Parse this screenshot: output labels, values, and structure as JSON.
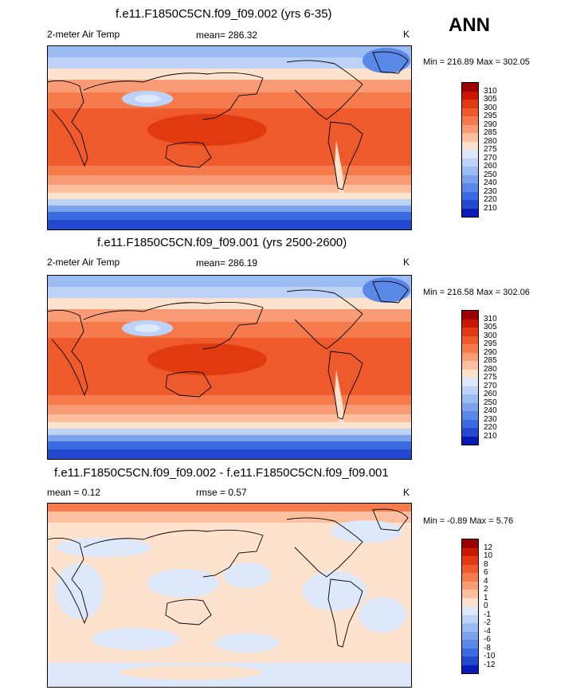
{
  "season": "ANN",
  "panels": [
    {
      "id": "panel1",
      "title": "f.e11.F1850C5CN.f09_f09.002 (yrs 6-35)",
      "left_label": "2-meter Air Temp",
      "center_label": "mean= 286.32",
      "units": "K",
      "minmax": "Min = 216.89 Max = 302.05",
      "colorbar_labels": [
        "310",
        "305",
        "300",
        "295",
        "290",
        "285",
        "280",
        "275",
        "270",
        "260",
        "250",
        "240",
        "230",
        "220",
        "210"
      ],
      "colorbar_colors": [
        "#9b0000",
        "#c81800",
        "#e23a10",
        "#ee5a2c",
        "#f57b4d",
        "#f99c76",
        "#fcbf9f",
        "#fde3cd",
        "#dde9fb",
        "#bcd3f7",
        "#9bbcf2",
        "#7aa3ec",
        "#5a88e6",
        "#3b6be0",
        "#2449cf",
        "#0a1ab6"
      ],
      "mean_value": 286.32,
      "min_value": 216.89,
      "max_value": 302.05
    },
    {
      "id": "panel2",
      "title": "f.e11.F1850C5CN.f09_f09.001 (yrs 2500-2600)",
      "left_label": "2-meter Air Temp",
      "center_label": "mean= 286.19",
      "units": "K",
      "minmax": "Min = 216.58 Max = 302.06",
      "colorbar_labels": [
        "310",
        "305",
        "300",
        "295",
        "290",
        "285",
        "280",
        "275",
        "270",
        "260",
        "250",
        "240",
        "230",
        "220",
        "210"
      ],
      "colorbar_colors": [
        "#9b0000",
        "#c81800",
        "#e23a10",
        "#ee5a2c",
        "#f57b4d",
        "#f99c76",
        "#fcbf9f",
        "#fde3cd",
        "#dde9fb",
        "#bcd3f7",
        "#9bbcf2",
        "#7aa3ec",
        "#5a88e6",
        "#3b6be0",
        "#2449cf",
        "#0a1ab6"
      ],
      "mean_value": 286.19,
      "min_value": 216.58,
      "max_value": 302.06
    },
    {
      "id": "panel3",
      "title": "f.e11.F1850C5CN.f09_f09.002 - f.e11.F1850C5CN.f09_f09.001",
      "left_label": "mean =   0.12",
      "center_label": "rmse =   0.57",
      "units": "K",
      "minmax": "Min =  -0.89 Max =   5.76",
      "colorbar_labels": [
        "12",
        "10",
        "8",
        "6",
        "4",
        "2",
        "1",
        "0",
        "-1",
        "-2",
        "-4",
        "-6",
        "-8",
        "-10",
        "-12"
      ],
      "colorbar_colors": [
        "#9b0000",
        "#c81800",
        "#e23a10",
        "#ee5a2c",
        "#f57b4d",
        "#f99c76",
        "#fcbf9f",
        "#fde3cd",
        "#dde9fb",
        "#bcd3f7",
        "#9bbcf2",
        "#7aa3ec",
        "#5a88e6",
        "#3b6be0",
        "#2449cf",
        "#0a1ab6"
      ],
      "mean_value": 0.12,
      "rmse_value": 0.57,
      "min_value": -0.89,
      "max_value": 5.76
    }
  ]
}
